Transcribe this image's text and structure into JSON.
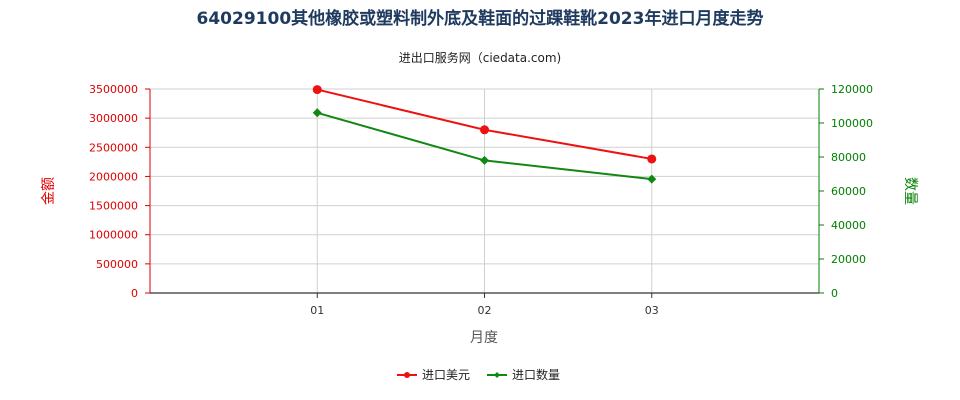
{
  "chart_data": {
    "type": "line",
    "title": "64029100其他橡胶或塑料制外底及鞋面的过踝鞋靴2023年进口月度走势",
    "subtitle": "进出口服务网（ciedata.com)",
    "xlabel": "月度",
    "ylabel_left": "金额",
    "ylabel_right": "数量",
    "categories": [
      "01",
      "02",
      "03"
    ],
    "y_left": {
      "min": 0,
      "max": 3500000,
      "ticks": [
        0,
        500000,
        1000000,
        1500000,
        2000000,
        2500000,
        3000000,
        3500000
      ],
      "tick_labels": [
        "0",
        "500000",
        "1000000",
        "1500000",
        "2000000",
        "2500000",
        "3000000",
        "3500000"
      ]
    },
    "y_right": {
      "min": 0,
      "max": 120000,
      "ticks": [
        0,
        20000,
        40000,
        60000,
        80000,
        100000,
        120000
      ],
      "tick_labels": [
        "0",
        "20000",
        "40000",
        "60000",
        "80000",
        "100000",
        "120000"
      ]
    },
    "series": [
      {
        "name": "进口美元",
        "axis": "left",
        "color": "#ee1111",
        "values": [
          3490000,
          2800000,
          2300000
        ]
      },
      {
        "name": "进口数量",
        "axis": "right",
        "color": "#118811",
        "values": [
          106000,
          78000,
          67000
        ]
      }
    ],
    "grid": true,
    "legend_position": "bottom-center"
  }
}
